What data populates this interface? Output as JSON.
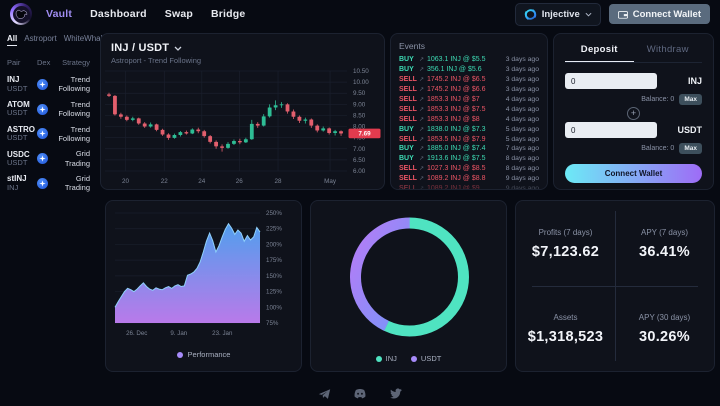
{
  "nav": {
    "items": [
      {
        "label": "Vault",
        "active": true
      },
      {
        "label": "Dashboard",
        "active": false
      },
      {
        "label": "Swap",
        "active": false
      },
      {
        "label": "Bridge",
        "active": false
      }
    ],
    "network_label": "Injective",
    "connect_label": "Connect Wallet"
  },
  "sidebar": {
    "tabs": [
      {
        "label": "All",
        "active": true
      },
      {
        "label": "Astroport",
        "active": false
      },
      {
        "label": "WhiteWhale",
        "active": false
      }
    ],
    "columns": [
      "Pair",
      "Dex",
      "Strategy"
    ],
    "rows": [
      {
        "base": "INJ",
        "quote": "USDT",
        "dex": "Astroport",
        "strategy": "Trend Following"
      },
      {
        "base": "ATOM",
        "quote": "USDT",
        "dex": "Astroport",
        "strategy": "Trend Following"
      },
      {
        "base": "ASTRO",
        "quote": "USDT",
        "dex": "Astroport",
        "strategy": "Trend Following"
      },
      {
        "base": "USDC",
        "quote": "USDT",
        "dex": "Astroport",
        "strategy": "Grid Trading"
      },
      {
        "base": "stINJ",
        "quote": "INJ",
        "dex": "Astroport",
        "strategy": "Grid Trading"
      }
    ]
  },
  "price_chart": {
    "title": "INJ / USDT",
    "subtitle": "Astroport - Trend Following",
    "last_price": "7.69",
    "up_color": "#2ebd95",
    "down_color": "#e25f6d",
    "price_chip_color": "#e23b4e",
    "y_ticks": [
      "10.50",
      "10.00",
      "9.50",
      "9.00",
      "8.50",
      "8.00",
      "7.50",
      "7.00",
      "6.50",
      "6.00"
    ],
    "y_range": [
      6.0,
      10.5
    ],
    "x_ticks": [
      {
        "label": "20",
        "f": 0.085
      },
      {
        "label": "22",
        "f": 0.245
      },
      {
        "label": "24",
        "f": 0.4
      },
      {
        "label": "26",
        "f": 0.555
      },
      {
        "label": "28",
        "f": 0.715
      },
      {
        "label": "May",
        "f": 0.93
      }
    ],
    "candles": [
      [
        9.45,
        9.52,
        9.33,
        9.38
      ],
      [
        9.38,
        9.42,
        8.5,
        8.55
      ],
      [
        8.55,
        8.62,
        8.35,
        8.44
      ],
      [
        8.44,
        8.5,
        8.24,
        8.3
      ],
      [
        8.3,
        8.44,
        8.24,
        8.37
      ],
      [
        8.37,
        8.4,
        8.08,
        8.14
      ],
      [
        8.14,
        8.2,
        7.94,
        8.0
      ],
      [
        8.0,
        8.18,
        7.95,
        8.1
      ],
      [
        8.1,
        8.13,
        7.79,
        7.85
      ],
      [
        7.85,
        7.9,
        7.58,
        7.64
      ],
      [
        7.64,
        7.7,
        7.4,
        7.49
      ],
      [
        7.49,
        7.68,
        7.45,
        7.62
      ],
      [
        7.62,
        7.8,
        7.55,
        7.75
      ],
      [
        7.75,
        7.82,
        7.64,
        7.69
      ],
      [
        7.69,
        7.92,
        7.66,
        7.87
      ],
      [
        7.87,
        7.95,
        7.7,
        7.79
      ],
      [
        7.79,
        7.85,
        7.5,
        7.57
      ],
      [
        7.57,
        7.62,
        7.24,
        7.31
      ],
      [
        7.31,
        7.38,
        7.0,
        7.11
      ],
      [
        7.11,
        7.2,
        6.87,
        7.04
      ],
      [
        7.04,
        7.3,
        7.0,
        7.22
      ],
      [
        7.22,
        7.42,
        7.17,
        7.35
      ],
      [
        7.35,
        7.45,
        7.21,
        7.29
      ],
      [
        7.29,
        7.5,
        7.26,
        7.43
      ],
      [
        7.43,
        8.3,
        7.4,
        8.12
      ],
      [
        8.12,
        8.2,
        7.94,
        8.04
      ],
      [
        8.04,
        8.56,
        8.0,
        8.46
      ],
      [
        8.46,
        9.0,
        8.4,
        8.86
      ],
      [
        8.86,
        9.18,
        8.74,
        8.96
      ],
      [
        8.96,
        9.1,
        8.84,
        9.0
      ],
      [
        9.0,
        9.05,
        8.58,
        8.68
      ],
      [
        8.68,
        8.77,
        8.34,
        8.44
      ],
      [
        8.44,
        8.5,
        8.16,
        8.26
      ],
      [
        8.26,
        8.4,
        8.14,
        8.32
      ],
      [
        8.32,
        8.36,
        7.94,
        8.04
      ],
      [
        8.04,
        8.1,
        7.74,
        7.82
      ],
      [
        7.82,
        8.0,
        7.77,
        7.92
      ],
      [
        7.92,
        7.96,
        7.64,
        7.71
      ],
      [
        7.71,
        7.85,
        7.6,
        7.79
      ],
      [
        7.79,
        7.83,
        7.58,
        7.69
      ]
    ]
  },
  "events": {
    "title": "Events",
    "rows": [
      {
        "side": "BUY",
        "text": "1063.1 INJ @ $5.5",
        "time": "3 days ago"
      },
      {
        "side": "BUY",
        "text": "356.1 INJ @ $5.6",
        "time": "3 days ago"
      },
      {
        "side": "SELL",
        "text": "1745.2 INJ @ $6.5",
        "time": "3 days ago"
      },
      {
        "side": "SELL",
        "text": "1745.2 INJ @ $6.6",
        "time": "3 days ago"
      },
      {
        "side": "SELL",
        "text": "1853.3 INJ @ $7",
        "time": "4 days ago"
      },
      {
        "side": "SELL",
        "text": "1853.3 INJ @ $7.5",
        "time": "4 days ago"
      },
      {
        "side": "SELL",
        "text": "1853.3 INJ @ $8",
        "time": "4 days ago"
      },
      {
        "side": "BUY",
        "text": "1838.0 INJ @ $7.3",
        "time": "5 days ago"
      },
      {
        "side": "SELL",
        "text": "1853.5 INJ @ $7.9",
        "time": "5 days ago"
      },
      {
        "side": "BUY",
        "text": "1885.0 INJ @ $7.4",
        "time": "7 days ago"
      },
      {
        "side": "BUY",
        "text": "1913.6 INJ @ $7.5",
        "time": "8 days ago"
      },
      {
        "side": "SELL",
        "text": "1027.3 INJ @ $8.5",
        "time": "8 days ago"
      },
      {
        "side": "SELL",
        "text": "1089.2 INJ @ $8.8",
        "time": "9 days ago"
      },
      {
        "side": "SELL",
        "text": "1089.2 INJ @ $9",
        "time": "9 days ago"
      }
    ]
  },
  "wallet_panel": {
    "tabs": [
      {
        "label": "Deposit",
        "active": true
      },
      {
        "label": "Withdraw",
        "active": false
      }
    ],
    "rows": [
      {
        "value": "0",
        "currency": "INJ",
        "balance_label": "Balance: 0",
        "max_label": "Max"
      },
      {
        "value": "0",
        "currency": "USDT",
        "balance_label": "Balance: 0",
        "max_label": "Max"
      }
    ],
    "action_label": "Connect Wallet"
  },
  "performance_chart": {
    "type": "area",
    "legend": "Performance",
    "legend_color": "#a78bfa",
    "y_ticks": [
      "250%",
      "225%",
      "200%",
      "175%",
      "150%",
      "125%",
      "100%",
      "75%"
    ],
    "y_range": [
      75,
      250
    ],
    "x_ticks": [
      {
        "label": "26. Dec",
        "f": 0.15
      },
      {
        "label": "9. Jan",
        "f": 0.44
      },
      {
        "label": "23. Jan",
        "f": 0.74
      }
    ],
    "values": [
      100,
      109,
      117,
      125,
      130,
      128,
      125,
      129,
      134,
      139,
      133,
      129,
      127,
      131,
      129,
      128,
      131,
      133,
      130,
      134,
      136,
      133,
      134,
      151,
      153,
      156,
      162,
      172,
      188,
      205,
      218,
      206,
      188,
      198,
      212,
      224,
      233,
      226,
      216,
      223,
      218,
      205,
      214,
      207,
      212,
      227,
      220
    ]
  },
  "allocation_chart": {
    "type": "donut",
    "slices": [
      {
        "label": "INJ",
        "value": 57,
        "color": "#4fe3c1"
      },
      {
        "label": "USDT",
        "value": 43,
        "color": "#a78bfa"
      }
    ],
    "gradient": [
      "#5ba0f8",
      "#b07ef7"
    ]
  },
  "stats": {
    "cells": [
      {
        "label": "Profits (7 days)",
        "value": "$7,123.62"
      },
      {
        "label": "APY (7 days)",
        "value": "36.41%"
      },
      {
        "label": "Assets",
        "value": "$1,318,523"
      },
      {
        "label": "APY (30 days)",
        "value": "30.26%"
      }
    ]
  },
  "footer": {
    "icons": [
      "telegram",
      "discord",
      "twitter"
    ]
  }
}
